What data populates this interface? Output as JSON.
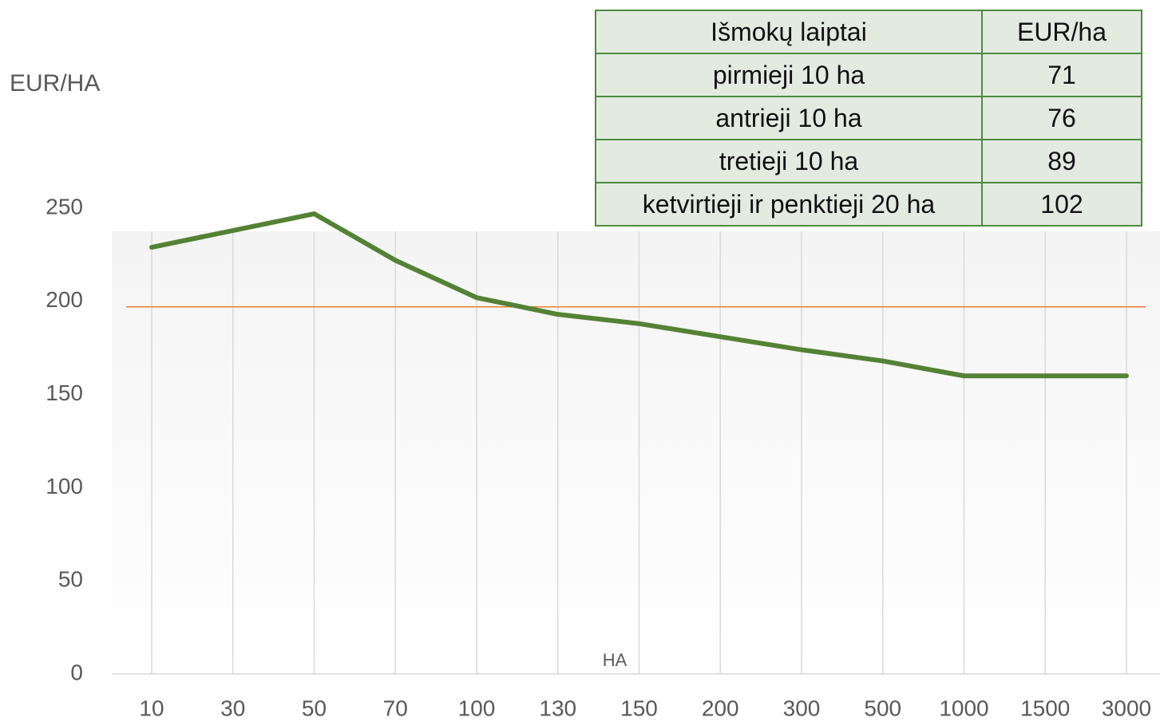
{
  "chart_data": {
    "type": "line",
    "ylabel": "EUR/HA",
    "xlabel": "HA",
    "categories": [
      "10",
      "30",
      "50",
      "70",
      "100",
      "130",
      "150",
      "200",
      "300",
      "500",
      "1000",
      "1500",
      "3000"
    ],
    "series": [
      {
        "color": "#548235",
        "values": [
          229,
          238,
          247,
          222,
          202,
          193,
          188,
          181,
          174,
          168,
          160,
          160,
          160
        ]
      }
    ],
    "reference_line": {
      "value": 197,
      "color": "#ed7d31"
    },
    "ylim": [
      0,
      250
    ],
    "yticks": [
      0,
      50,
      100,
      150,
      200,
      250
    ],
    "xgrid": true,
    "grid": false
  },
  "table": {
    "header": [
      "Išmokų laiptai",
      "EUR/ha"
    ],
    "rows": [
      [
        "pirmieji 10 ha",
        "71"
      ],
      [
        "antrieji 10 ha",
        "76"
      ],
      [
        "tretieji 10 ha",
        "89"
      ],
      [
        "ketvirtieji ir penktieji 20 ha",
        "102"
      ]
    ]
  }
}
